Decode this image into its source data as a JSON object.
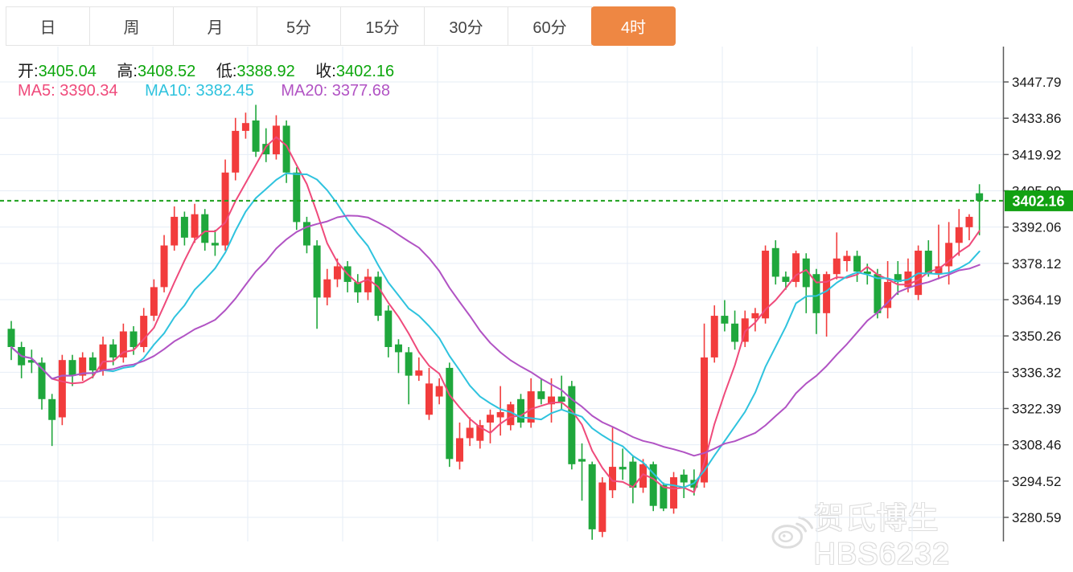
{
  "tabs": [
    {
      "label": "日",
      "active": false
    },
    {
      "label": "周",
      "active": false
    },
    {
      "label": "月",
      "active": false
    },
    {
      "label": "5分",
      "active": false
    },
    {
      "label": "15分",
      "active": false
    },
    {
      "label": "30分",
      "active": false
    },
    {
      "label": "60分",
      "active": false
    },
    {
      "label": "4时",
      "active": true
    }
  ],
  "active_tab_color": "#ee8743",
  "legend": {
    "ohlc": [
      {
        "label": "开:",
        "value": "3405.04"
      },
      {
        "label": "高:",
        "value": "3408.52"
      },
      {
        "label": "低:",
        "value": "3388.92"
      },
      {
        "label": "收:",
        "value": "3402.16"
      }
    ],
    "ohlc_value_color": "#0ca60c",
    "ma": [
      {
        "label": "MA5:",
        "value": "3390.34",
        "color": "#ef4a7b"
      },
      {
        "label": "MA10:",
        "value": "3382.45",
        "color": "#2fc3de"
      },
      {
        "label": "MA20:",
        "value": "3377.68",
        "color": "#b153c4"
      }
    ]
  },
  "axis": {
    "ticks": [
      "3447.79",
      "3433.86",
      "3419.92",
      "3405.99",
      "3392.06",
      "3378.12",
      "3364.19",
      "3350.26",
      "3336.32",
      "3322.39",
      "3308.46",
      "3294.52",
      "3280.59"
    ]
  },
  "watermark": {
    "text": "贺氏博生HBS6232"
  },
  "chart_data": {
    "type": "candlestick",
    "timeframe": "4时",
    "up_color": "#f23c3c",
    "down_color": "#1fa73c",
    "grid_color": "#e6edf6",
    "dotted_line_color": "#1ca01c",
    "tag_color": "#12a112",
    "last_price": 3402.16,
    "last_price_label": "3402.16",
    "y_ticks": [
      3447.79,
      3433.86,
      3419.92,
      3405.99,
      3392.06,
      3378.12,
      3364.19,
      3350.26,
      3336.32,
      3322.39,
      3308.46,
      3294.52,
      3280.59
    ],
    "ma_series": [
      {
        "name": "MA5",
        "window": 5,
        "value": 3390.34,
        "color": "#ef4a7b"
      },
      {
        "name": "MA10",
        "window": 10,
        "value": 3382.45,
        "color": "#2fc3de"
      },
      {
        "name": "MA20",
        "window": 20,
        "value": 3377.68,
        "color": "#b153c4"
      }
    ],
    "candles": [
      [
        3353,
        3356,
        3341,
        3346
      ],
      [
        3346,
        3348,
        3334,
        3339
      ],
      [
        3341,
        3345,
        3336,
        3340
      ],
      [
        3340,
        3342,
        3322,
        3326
      ],
      [
        3326,
        3328,
        3308,
        3318
      ],
      [
        3319,
        3343,
        3316,
        3341
      ],
      [
        3341,
        3343,
        3331,
        3335
      ],
      [
        3335,
        3344,
        3333,
        3342
      ],
      [
        3342,
        3344,
        3334,
        3337
      ],
      [
        3337,
        3350,
        3335,
        3347
      ],
      [
        3347,
        3349,
        3339,
        3342
      ],
      [
        3342,
        3355,
        3340,
        3352
      ],
      [
        3352,
        3354,
        3343,
        3346
      ],
      [
        3346,
        3361,
        3344,
        3358
      ],
      [
        3358,
        3372,
        3356,
        3369
      ],
      [
        3369,
        3389,
        3367,
        3385
      ],
      [
        3385,
        3400,
        3383,
        3396
      ],
      [
        3396,
        3398,
        3385,
        3388
      ],
      [
        3388,
        3401,
        3386,
        3397
      ],
      [
        3397,
        3399,
        3383,
        3386
      ],
      [
        3386,
        3391,
        3381,
        3385
      ],
      [
        3385,
        3418,
        3383,
        3413
      ],
      [
        3413,
        3434,
        3410,
        3429
      ],
      [
        3429,
        3436,
        3426,
        3432
      ],
      [
        3433,
        3439,
        3419,
        3421
      ],
      [
        3424,
        3430,
        3417,
        3420
      ],
      [
        3420,
        3435,
        3418,
        3431
      ],
      [
        3431,
        3433,
        3409,
        3413
      ],
      [
        3413,
        3415,
        3391,
        3394
      ],
      [
        3394,
        3396,
        3382,
        3385
      ],
      [
        3385,
        3387,
        3353,
        3365
      ],
      [
        3365,
        3376,
        3362,
        3372
      ],
      [
        3372,
        3380,
        3369,
        3377
      ],
      [
        3377,
        3379,
        3367,
        3371
      ],
      [
        3371,
        3374,
        3363,
        3367
      ],
      [
        3367,
        3376,
        3364,
        3373
      ],
      [
        3373,
        3375,
        3356,
        3358
      ],
      [
        3360,
        3362,
        3342,
        3346
      ],
      [
        3347,
        3349,
        3336,
        3344
      ],
      [
        3344,
        3346,
        3324,
        3335
      ],
      [
        3335,
        3342,
        3333,
        3337
      ],
      [
        3320,
        3338,
        3318,
        3332
      ],
      [
        3327,
        3334,
        3324,
        3331
      ],
      [
        3338,
        3340,
        3300,
        3303
      ],
      [
        3302,
        3317,
        3299,
        3311
      ],
      [
        3311,
        3319,
        3308,
        3315
      ],
      [
        3310,
        3318,
        3307,
        3316
      ],
      [
        3317,
        3322,
        3309,
        3320
      ],
      [
        3319,
        3331,
        3312,
        3321
      ],
      [
        3316,
        3325,
        3314,
        3324
      ],
      [
        3326,
        3328,
        3315,
        3317
      ],
      [
        3317,
        3334,
        3315,
        3329
      ],
      [
        3329,
        3334,
        3324,
        3326
      ],
      [
        3324,
        3334,
        3317,
        3327
      ],
      [
        3327,
        3335,
        3322,
        3325
      ],
      [
        3331,
        3333,
        3299,
        3301
      ],
      [
        3303,
        3309,
        3287,
        3302
      ],
      [
        3301,
        3302,
        3272,
        3276
      ],
      [
        3275,
        3296,
        3273,
        3294
      ],
      [
        3291,
        3315,
        3288,
        3300
      ],
      [
        3300,
        3307,
        3295,
        3299
      ],
      [
        3302,
        3304,
        3286,
        3292
      ],
      [
        3292,
        3303,
        3290,
        3301
      ],
      [
        3301,
        3302,
        3283,
        3285
      ],
      [
        3293,
        3294,
        3283,
        3284
      ],
      [
        3284,
        3298,
        3282,
        3296
      ],
      [
        3297,
        3299,
        3288,
        3294
      ],
      [
        3295,
        3299,
        3289,
        3292
      ],
      [
        3294,
        3355,
        3292,
        3342
      ],
      [
        3342,
        3362,
        3340,
        3358
      ],
      [
        3358,
        3364,
        3352,
        3355
      ],
      [
        3355,
        3360,
        3345,
        3348
      ],
      [
        3348,
        3360,
        3346,
        3357
      ],
      [
        3357,
        3361,
        3352,
        3359
      ],
      [
        3357,
        3385,
        3355,
        3383
      ],
      [
        3384,
        3387,
        3370,
        3373
      ],
      [
        3373,
        3375,
        3368,
        3371
      ],
      [
        3371,
        3383,
        3369,
        3382
      ],
      [
        3380,
        3382,
        3359,
        3369
      ],
      [
        3374,
        3376,
        3351,
        3359
      ],
      [
        3359,
        3375,
        3350,
        3374
      ],
      [
        3374,
        3390,
        3372,
        3380
      ],
      [
        3379,
        3383,
        3375,
        3381
      ],
      [
        3381,
        3383,
        3371,
        3375
      ],
      [
        3375,
        3378,
        3370,
        3374
      ],
      [
        3374,
        3376,
        3357,
        3359
      ],
      [
        3361,
        3379,
        3357,
        3371
      ],
      [
        3374,
        3379,
        3366,
        3371
      ],
      [
        3369,
        3380,
        3367,
        3375
      ],
      [
        3366,
        3385,
        3364,
        3383
      ],
      [
        3383,
        3387,
        3373,
        3374
      ],
      [
        3374,
        3393,
        3372,
        3377
      ],
      [
        3377,
        3394,
        3370,
        3386
      ],
      [
        3386,
        3399,
        3381,
        3392
      ],
      [
        3392,
        3397,
        3387,
        3396
      ],
      [
        3405.04,
        3408.52,
        3388.92,
        3402.16
      ]
    ]
  }
}
